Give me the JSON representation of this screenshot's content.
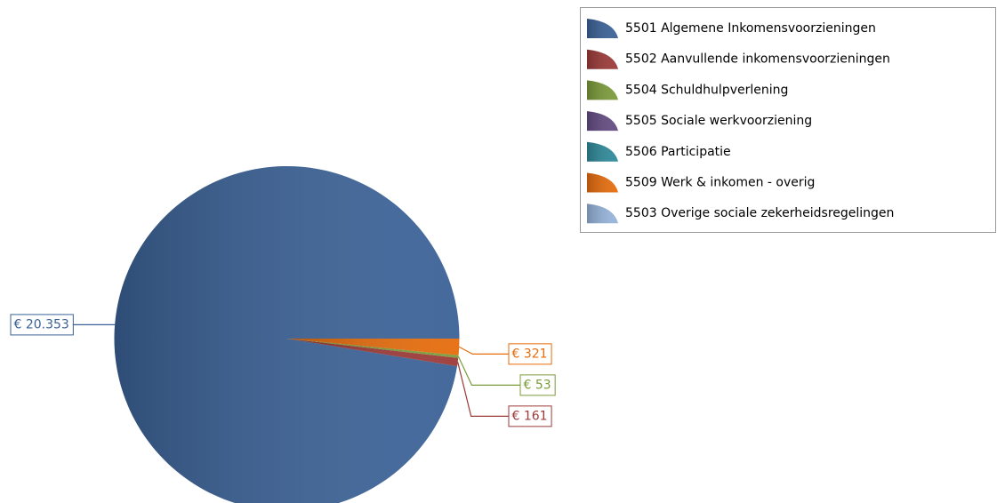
{
  "chart_data": {
    "type": "pie",
    "categories": [
      "5501 Algemene Inkomensvoorzieningen",
      "5502 Aanvullende inkomensvoorzieningen",
      "5504 Schuldhulpverlening",
      "5505 Sociale werkvoorziening",
      "5506 Participatie",
      "5509 Werk & inkomen - overig",
      "5503 Overige sociale zekerheidsregelingen"
    ],
    "values": [
      20353,
      161,
      53,
      0,
      0,
      321,
      0
    ],
    "value_labels": [
      "€ 20.353",
      "€ 161",
      "€ 53",
      null,
      null,
      "€ 321",
      null
    ],
    "colors": [
      "#3b6297",
      "#9c3a38",
      "#7b9b3a",
      "#634b82",
      "#2f8a9b",
      "#e66c0c",
      "#95b4da"
    ],
    "legend": "top-right"
  }
}
